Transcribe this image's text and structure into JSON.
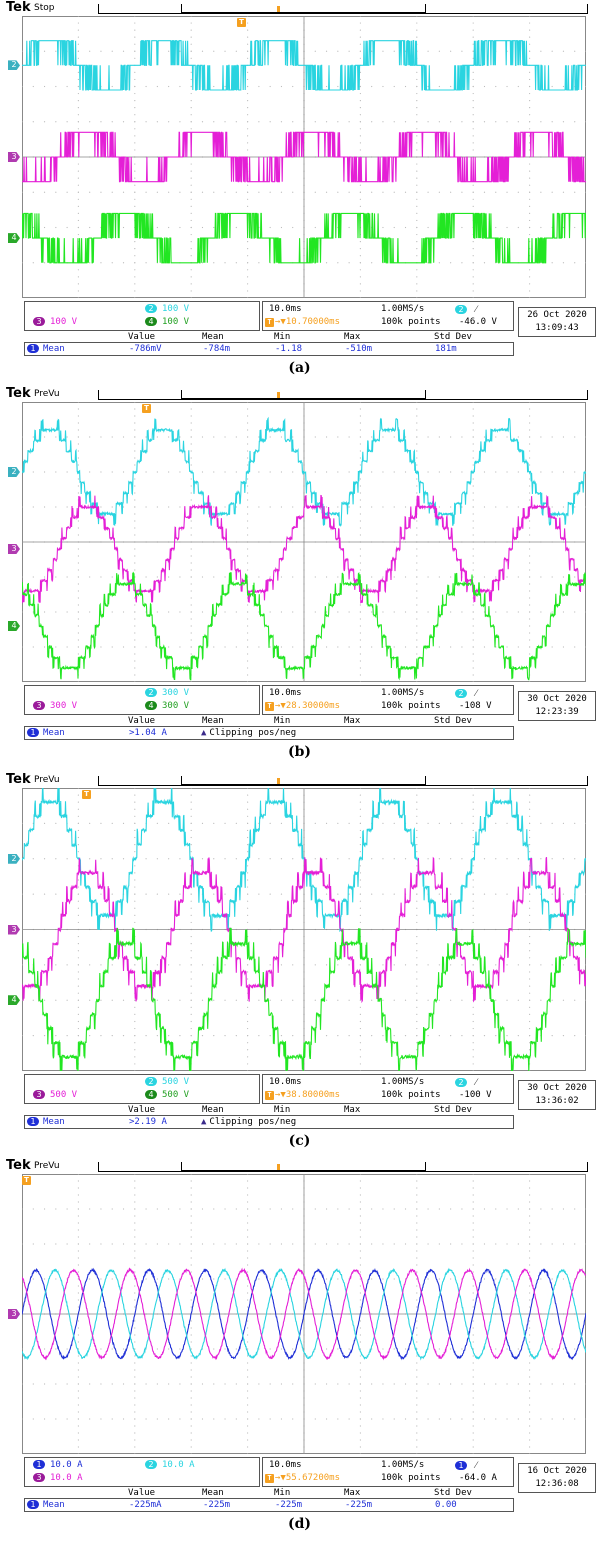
{
  "colors": {
    "ch1": "#1f2fd6",
    "ch2": "#2ad4e0",
    "ch3": "#e41fd6",
    "ch4": "#22e622",
    "trigger": "#f5a020",
    "grid": "#bbbbbb"
  },
  "chart_data": [
    {
      "type": "line",
      "label": "(a)",
      "tek": "Tek",
      "status": "Stop",
      "waveform": "pwm",
      "ylim": [
        -4,
        4
      ],
      "series": [
        {
          "channel": "2",
          "color_key": "ch2",
          "offset_div": 2.6,
          "amplitude_div": 1.0,
          "phase_deg": 0
        },
        {
          "channel": "3",
          "color_key": "ch3",
          "offset_div": 0.0,
          "amplitude_div": 1.0,
          "phase_deg": 120
        },
        {
          "channel": "4",
          "color_key": "ch4",
          "offset_div": -2.3,
          "amplitude_div": 1.0,
          "phase_deg": 240
        }
      ],
      "frequency_hz": 50,
      "duration_ms": 100,
      "ch_scale": {
        "row1": [
          {
            "n": "2",
            "text": "100 V"
          }
        ],
        "row2": [
          {
            "n": "3",
            "text": "100 V"
          },
          {
            "n": "4",
            "text": "100 V"
          }
        ]
      },
      "timebase": "10.0ms",
      "sample_rate": "1.00MS/s",
      "trig_pos": "10.70000ms",
      "points": "100k points",
      "trig_ch": "2",
      "trig_level": "-46.0 V",
      "date": "26 Oct  2020",
      "time": "13:09:43",
      "meas": {
        "headers": [
          "Value",
          "Mean",
          "Min",
          "Max",
          "Std Dev"
        ],
        "ch": "1",
        "name": "Mean",
        "value": "-786mV",
        "mean": "-784m",
        "min": "-1.18",
        "max": "-510m",
        "std": "181m",
        "clip": ""
      }
    },
    {
      "type": "line",
      "label": "(b)",
      "tek": "Tek",
      "status": "PreVu",
      "waveform": "multilevel",
      "ylim": [
        -4,
        4
      ],
      "series": [
        {
          "channel": "2",
          "color_key": "ch2",
          "offset_div": 2.0,
          "amplitude_div": 1.2,
          "phase_deg": 0
        },
        {
          "channel": "3",
          "color_key": "ch3",
          "offset_div": -0.2,
          "amplitude_div": 1.2,
          "phase_deg": 120
        },
        {
          "channel": "4",
          "color_key": "ch4",
          "offset_div": -2.4,
          "amplitude_div": 1.2,
          "phase_deg": 240
        }
      ],
      "frequency_hz": 50,
      "duration_ms": 100,
      "ch_scale": {
        "row1": [
          {
            "n": "2",
            "text": "300 V"
          }
        ],
        "row2": [
          {
            "n": "3",
            "text": "300 V"
          },
          {
            "n": "4",
            "text": "300 V"
          }
        ]
      },
      "timebase": "10.0ms",
      "sample_rate": "1.00MS/s",
      "trig_pos": "28.30000ms",
      "points": "100k points",
      "trig_ch": "2",
      "trig_level": "-108 V",
      "date": "30 Oct  2020",
      "time": "12:23:39",
      "meas": {
        "headers": [
          "Value",
          "Mean",
          "Min",
          "Max",
          "Std Dev"
        ],
        "ch": "1",
        "name": "Mean",
        "value": ">1.04 A",
        "mean": "",
        "min": "",
        "max": "",
        "std": "",
        "clip": "Clipping pos/neg"
      }
    },
    {
      "type": "line",
      "label": "(c)",
      "tek": "Tek",
      "status": "PreVu",
      "waveform": "multilevel",
      "ylim": [
        -4,
        4
      ],
      "series": [
        {
          "channel": "2",
          "color_key": "ch2",
          "offset_div": 2.0,
          "amplitude_div": 1.6,
          "phase_deg": 0
        },
        {
          "channel": "3",
          "color_key": "ch3",
          "offset_div": 0.0,
          "amplitude_div": 1.6,
          "phase_deg": 120
        },
        {
          "channel": "4",
          "color_key": "ch4",
          "offset_div": -2.0,
          "amplitude_div": 1.6,
          "phase_deg": 240
        }
      ],
      "frequency_hz": 50,
      "duration_ms": 100,
      "ch_scale": {
        "row1": [
          {
            "n": "2",
            "text": "500 V"
          }
        ],
        "row2": [
          {
            "n": "3",
            "text": "500 V"
          },
          {
            "n": "4",
            "text": "500 V"
          }
        ]
      },
      "timebase": "10.0ms",
      "sample_rate": "1.00MS/s",
      "trig_pos": "38.80000ms",
      "points": "100k points",
      "trig_ch": "2",
      "trig_level": "-100 V",
      "date": "30 Oct  2020",
      "time": "13:36:02",
      "meas": {
        "headers": [
          "Value",
          "Mean",
          "Min",
          "Max",
          "Std Dev"
        ],
        "ch": "1",
        "name": "Mean",
        "value": ">2.19 A",
        "mean": "",
        "min": "",
        "max": "",
        "std": "",
        "clip": "Clipping pos/neg"
      }
    },
    {
      "type": "line",
      "label": "(d)",
      "tek": "Tek",
      "status": "PreVu",
      "waveform": "sine",
      "ylim": [
        -4,
        4
      ],
      "series": [
        {
          "channel": "1",
          "color_key": "ch1",
          "offset_div": 0.0,
          "amplitude_div": 1.25,
          "phase_deg": 0
        },
        {
          "channel": "2",
          "color_key": "ch2",
          "offset_div": 0.0,
          "amplitude_div": 1.25,
          "phase_deg": 120
        },
        {
          "channel": "3",
          "color_key": "ch3",
          "offset_div": 0.0,
          "amplitude_div": 1.25,
          "phase_deg": 240
        }
      ],
      "frequency_hz": 100,
      "duration_ms": 100,
      "ch_scale": {
        "row1": [
          {
            "n": "1",
            "text": "10.0 A"
          },
          {
            "n": "2",
            "text": "10.0 A"
          }
        ],
        "row2": [
          {
            "n": "3",
            "text": "10.0 A"
          }
        ]
      },
      "timebase": "10.0ms",
      "sample_rate": "1.00MS/s",
      "trig_pos": "55.67200ms",
      "points": "100k points",
      "trig_ch": "1",
      "trig_level": "-64.0 A",
      "date": "16 Oct  2020",
      "time": "12:36:08",
      "meas": {
        "headers": [
          "Value",
          "Mean",
          "Min",
          "Max",
          "Std Dev"
        ],
        "ch": "1",
        "name": "Mean",
        "value": "-225mA",
        "mean": "-225m",
        "min": "-225m",
        "max": "-225m",
        "std": "0.00",
        "clip": ""
      }
    }
  ]
}
